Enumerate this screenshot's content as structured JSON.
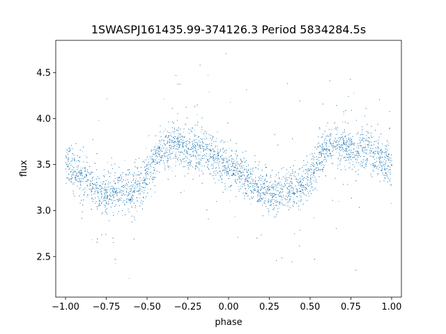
{
  "chart_data": {
    "type": "scatter",
    "title": "1SWASPJ161435.99-374126.3 Period 5834284.5s",
    "xlabel": "phase",
    "ylabel": "flux",
    "xlim": [
      -1.06,
      1.06
    ],
    "ylim": [
      2.06,
      4.85
    ],
    "grid": false,
    "marker_color": "#1f77b4",
    "x_ticks": [
      -1.0,
      -0.75,
      -0.5,
      -0.25,
      0.0,
      0.25,
      0.5,
      0.75,
      1.0
    ],
    "x_tick_labels": [
      "−1.00",
      "−0.75",
      "−0.50",
      "−0.25",
      "0.00",
      "0.25",
      "0.50",
      "0.75",
      "1.00"
    ],
    "y_ticks": [
      2.5,
      3.0,
      3.5,
      4.0,
      4.5
    ],
    "y_tick_labels": [
      "2.5",
      "3.0",
      "3.5",
      "4.0",
      "4.5"
    ],
    "profile": {
      "phase": [
        0.0,
        0.05,
        0.1,
        0.15,
        0.2,
        0.25,
        0.3,
        0.35,
        0.4,
        0.45,
        0.5,
        0.55,
        0.6,
        0.65,
        0.7,
        0.75,
        0.8,
        0.85,
        0.9,
        0.95,
        1.0
      ],
      "flux": [
        3.52,
        3.42,
        3.35,
        3.28,
        3.22,
        3.18,
        3.2,
        3.24,
        3.22,
        3.28,
        3.4,
        3.55,
        3.68,
        3.72,
        3.7,
        3.65,
        3.68,
        3.66,
        3.6,
        3.52,
        3.48
      ]
    },
    "series": [
      {
        "points": [
          [
            -1.0,
            3.45
          ],
          [
            -0.9,
            3.35
          ],
          [
            -0.8,
            3.25
          ],
          [
            -0.75,
            3.18
          ],
          [
            -0.65,
            3.25
          ],
          [
            -0.55,
            3.3
          ],
          [
            -0.45,
            3.6
          ],
          [
            -0.35,
            3.72
          ],
          [
            -0.25,
            3.7
          ],
          [
            -0.15,
            3.66
          ],
          [
            -0.05,
            3.58
          ],
          [
            0.0,
            3.52
          ],
          [
            0.1,
            3.35
          ],
          [
            0.25,
            3.18
          ],
          [
            0.35,
            3.22
          ],
          [
            0.45,
            3.3
          ],
          [
            0.55,
            3.55
          ],
          [
            0.65,
            3.72
          ],
          [
            0.75,
            3.65
          ],
          [
            0.85,
            3.66
          ],
          [
            0.95,
            3.52
          ],
          [
            1.0,
            3.45
          ]
        ]
      }
    ]
  }
}
